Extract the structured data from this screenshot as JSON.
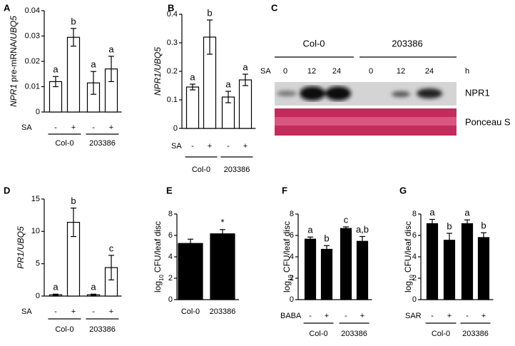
{
  "chart_data": [
    {
      "type": "bar",
      "panel": "A",
      "ylabel": [
        {
          "text": "NPR1",
          "italic": true
        },
        {
          "text": "pre-mRNA/",
          "italic": false
        },
        {
          "text": "UBQ5",
          "italic": true
        }
      ],
      "ylim": [
        0,
        0.04
      ],
      "yticks": [
        0,
        0.01,
        0.02,
        0.03,
        0.04
      ],
      "treatment": "SA",
      "signs": [
        "-",
        "+",
        "-",
        "+"
      ],
      "groups": [
        "Col-0",
        "203386"
      ],
      "values": [
        0.012,
        0.0295,
        0.0115,
        0.017
      ],
      "errors": [
        0.002,
        0.0035,
        0.0045,
        0.005
      ],
      "letters": [
        "a",
        "b",
        "a",
        "a"
      ],
      "color": "#ffffff"
    },
    {
      "type": "bar",
      "panel": "B",
      "ylabel": [
        {
          "text": "NPR1/UBQ5",
          "italic": true
        }
      ],
      "ylim": [
        0,
        0.4
      ],
      "yticks": [
        0,
        0.1,
        0.2,
        0.3,
        0.4
      ],
      "treatment": "SA",
      "signs": [
        "-",
        "+",
        "-",
        "+"
      ],
      "groups": [
        "Col-0",
        "203386"
      ],
      "values": [
        0.145,
        0.32,
        0.11,
        0.17
      ],
      "errors": [
        0.01,
        0.06,
        0.02,
        0.02
      ],
      "letters": [
        "a",
        "b",
        "a",
        "a"
      ],
      "color": "#ffffff"
    },
    {
      "type": "bar",
      "panel": "D",
      "ylabel": [
        {
          "text": "PR1/UBQ5",
          "italic": true
        }
      ],
      "ylim": [
        0,
        15
      ],
      "yticks": [
        0,
        5,
        10,
        15
      ],
      "treatment": "SA",
      "signs": [
        "-",
        "+",
        "-",
        "+"
      ],
      "groups": [
        "Col-0",
        "203386"
      ],
      "values": [
        0.2,
        11.4,
        0.2,
        4.4
      ],
      "errors": [
        0.1,
        2.2,
        0.1,
        1.9
      ],
      "letters": [
        "a",
        "b",
        "a",
        "c"
      ],
      "color": "#ffffff"
    },
    {
      "type": "bar",
      "panel": "E",
      "ylabel": [
        {
          "text": "log",
          "sub": false
        },
        {
          "text": "10",
          "sub": true
        },
        {
          "text": "CFU/leaf disc",
          "sub": false
        }
      ],
      "ylim": [
        0,
        8
      ],
      "yticks": [
        0,
        2,
        4,
        6,
        8
      ],
      "categories": [
        "Col-0",
        "203386"
      ],
      "values": [
        5.25,
        6.15
      ],
      "errors": [
        0.4,
        0.4
      ],
      "letters": [
        null,
        "*"
      ],
      "color": "#000000"
    },
    {
      "type": "bar",
      "panel": "F",
      "ylabel": [
        {
          "text": "log",
          "sub": false
        },
        {
          "text": "10",
          "sub": true
        },
        {
          "text": "CFU/leaf disc",
          "sub": false
        }
      ],
      "ylim": [
        0,
        8
      ],
      "yticks": [
        0,
        2,
        4,
        6,
        8
      ],
      "treatment": "BABA",
      "signs": [
        "-",
        "+",
        "-",
        "+"
      ],
      "groups": [
        "Col-0",
        "203386"
      ],
      "values": [
        5.65,
        4.7,
        6.65,
        5.45
      ],
      "errors": [
        0.2,
        0.35,
        0.15,
        0.45
      ],
      "letters": [
        "a",
        "b",
        "c",
        "a,b"
      ],
      "color": "#000000"
    },
    {
      "type": "bar",
      "panel": "G",
      "ylabel": [
        {
          "text": "log",
          "sub": false
        },
        {
          "text": "10",
          "sub": true
        },
        {
          "text": "CFU/leaf disc",
          "sub": false
        }
      ],
      "ylim": [
        0,
        8
      ],
      "yticks": [
        0,
        2,
        4,
        6,
        8
      ],
      "treatment": "SAR",
      "signs": [
        "-",
        "+",
        "-",
        "+"
      ],
      "groups": [
        "Col-0",
        "203386"
      ],
      "values": [
        7.1,
        5.55,
        7.1,
        5.8
      ],
      "errors": [
        0.4,
        0.65,
        0.35,
        0.45
      ],
      "letters": [
        "a",
        "b",
        "a",
        "b"
      ],
      "color": "#000000"
    }
  ],
  "blot": {
    "panel": "C",
    "groups": [
      "Col-0",
      "203386"
    ],
    "treatment": "SA",
    "times": [
      "0",
      "12",
      "24",
      "0",
      "12",
      "24"
    ],
    "unit": "h",
    "rows": [
      "NPR1",
      "Ponceau S"
    ]
  }
}
